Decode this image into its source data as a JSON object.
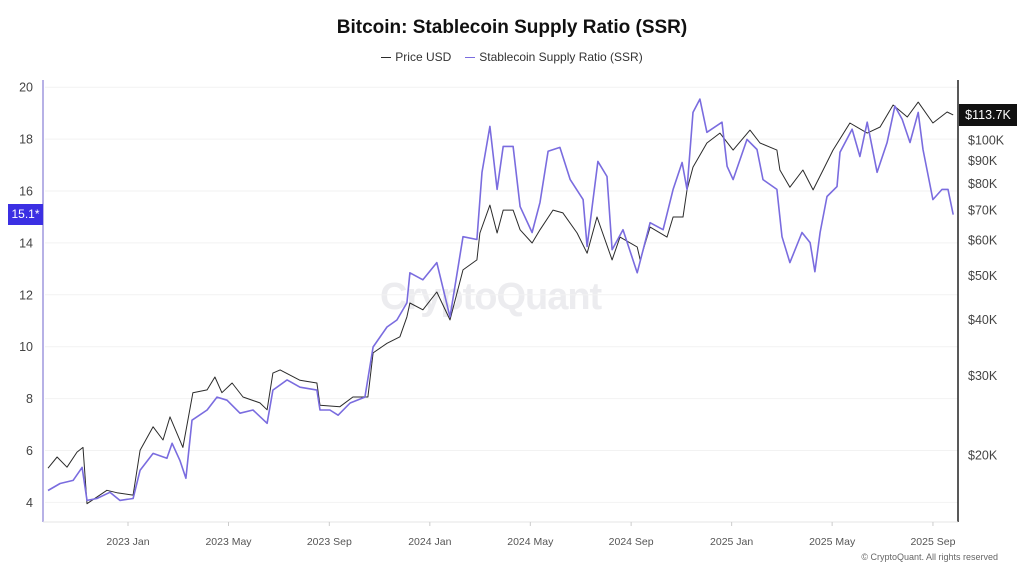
{
  "chart_data": {
    "type": "line",
    "title": "Bitcoin: Stablecoin Supply Ratio (SSR)",
    "legend": [
      "Price USD",
      "Stablecoin Supply Ratio (SSR)"
    ],
    "legend_placement": "top-center",
    "x_unit": "decimal year",
    "xlim": [
      2022.725,
      2025.75
    ],
    "x_ticks": [
      {
        "x": 2023.0,
        "label": "2023 Jan"
      },
      {
        "x": 2023.333,
        "label": "2023 May"
      },
      {
        "x": 2023.667,
        "label": "2023 Sep"
      },
      {
        "x": 2024.0,
        "label": "2024 Jan"
      },
      {
        "x": 2024.333,
        "label": "2024 May"
      },
      {
        "x": 2024.667,
        "label": "2024 Sep"
      },
      {
        "x": 2025.0,
        "label": "2025 Jan"
      },
      {
        "x": 2025.333,
        "label": "2025 May"
      },
      {
        "x": 2025.667,
        "label": "2025 Sep"
      }
    ],
    "left_axis": {
      "label": "SSR",
      "ylim": [
        3.4,
        20.2
      ],
      "ticks": [
        4,
        6,
        8,
        10,
        12,
        14,
        16,
        18,
        20
      ],
      "tick_labels": [
        "4",
        "6",
        "8",
        "10",
        "12",
        "14",
        "16",
        "18",
        "20"
      ],
      "grid": true,
      "current_value_label": "15.1*"
    },
    "right_axis": {
      "label": "Price USD",
      "scale": "log",
      "ylim": [
        14.5,
        134.5
      ],
      "unit": "thousand USD",
      "ticks": [
        20,
        30,
        40,
        50,
        60,
        70,
        80,
        90,
        100
      ],
      "tick_labels": [
        "$20K",
        "$30K",
        "$40K",
        "$50K",
        "$60K",
        "$70K",
        "$80K",
        "$90K",
        "$100K"
      ],
      "current_value_label": "$113.7K"
    },
    "series": [
      {
        "name": "Price USD",
        "axis": "right",
        "color": "#2b2b2b",
        "x": [
          2022.735,
          2022.765,
          2022.798,
          2022.831,
          2022.851,
          2022.864,
          2022.93,
          2022.963,
          2023.017,
          2023.04,
          2023.083,
          2023.116,
          2023.139,
          2023.182,
          2023.215,
          2023.262,
          2023.288,
          2023.311,
          2023.345,
          2023.381,
          2023.437,
          2023.461,
          2023.48,
          2023.504,
          2023.57,
          2023.626,
          2023.636,
          2023.702,
          2023.745,
          2023.795,
          2023.812,
          2023.858,
          2023.901,
          2023.924,
          2023.934,
          2023.977,
          2024.023,
          2024.067,
          2024.11,
          2024.156,
          2024.166,
          2024.199,
          2024.223,
          2024.243,
          2024.276,
          2024.299,
          2024.339,
          2024.365,
          2024.408,
          2024.441,
          2024.488,
          2024.521,
          2024.554,
          2024.604,
          2024.63,
          2024.687,
          2024.697,
          2024.73,
          2024.786,
          2024.806,
          2024.839,
          2024.852,
          2024.872,
          2024.918,
          2024.961,
          2025.005,
          2025.061,
          2025.094,
          2025.15,
          2025.16,
          2025.193,
          2025.236,
          2025.27,
          2025.303,
          2025.336,
          2025.392,
          2025.449,
          2025.492,
          2025.535,
          2025.582,
          2025.618,
          2025.667,
          2025.714,
          2025.734
        ],
        "y": [
          18.7,
          19.8,
          18.8,
          20.3,
          20.8,
          15.6,
          16.7,
          16.5,
          16.3,
          20.5,
          23.1,
          21.6,
          24.3,
          20.8,
          27.5,
          27.9,
          29.8,
          27.5,
          28.9,
          26.9,
          26.1,
          25.2,
          30.4,
          30.9,
          29.3,
          28.9,
          25.8,
          25.6,
          26.9,
          26.9,
          33.7,
          35.4,
          36.6,
          40.5,
          43.5,
          42.0,
          46.0,
          39.9,
          51.5,
          54.2,
          62.2,
          71.7,
          62.2,
          69.9,
          69.9,
          63.2,
          59.1,
          63.2,
          69.9,
          68.9,
          62.2,
          56.1,
          67.5,
          54.2,
          60.9,
          57.9,
          54.2,
          64.1,
          60.9,
          67.5,
          67.5,
          77.5,
          87.1,
          98.5,
          103.6,
          95.0,
          105.2,
          98.5,
          95.0,
          85.8,
          78.6,
          85.8,
          77.5,
          85.8,
          95.0,
          109.1,
          103.6,
          106.9,
          119.6,
          112.5,
          121.4,
          109.1,
          115.4,
          113.7
        ]
      },
      {
        "name": "Stablecoin Supply Ratio (SSR)",
        "axis": "left",
        "color": "#7a6cdf",
        "x": [
          2022.735,
          2022.775,
          2022.818,
          2022.848,
          2022.864,
          2022.897,
          2022.94,
          2022.973,
          2023.017,
          2023.04,
          2023.083,
          2023.129,
          2023.146,
          2023.172,
          2023.192,
          2023.212,
          2023.262,
          2023.295,
          2023.328,
          2023.371,
          2023.414,
          2023.461,
          2023.48,
          2023.527,
          2023.57,
          2023.626,
          2023.636,
          2023.669,
          2023.696,
          2023.736,
          2023.785,
          2023.812,
          2023.858,
          2023.891,
          2023.924,
          2023.934,
          2023.977,
          2024.023,
          2024.067,
          2024.11,
          2024.156,
          2024.173,
          2024.199,
          2024.223,
          2024.243,
          2024.276,
          2024.299,
          2024.339,
          2024.365,
          2024.392,
          2024.431,
          2024.465,
          2024.508,
          2024.521,
          2024.557,
          2024.587,
          2024.604,
          2024.64,
          2024.687,
          2024.73,
          2024.773,
          2024.806,
          2024.836,
          2024.852,
          2024.872,
          2024.895,
          2024.918,
          2024.968,
          2024.985,
          2025.005,
          2025.051,
          2025.084,
          2025.104,
          2025.15,
          2025.167,
          2025.193,
          2025.233,
          2025.26,
          2025.276,
          2025.293,
          2025.316,
          2025.349,
          2025.359,
          2025.399,
          2025.425,
          2025.449,
          2025.482,
          2025.515,
          2025.541,
          2025.565,
          2025.591,
          2025.618,
          2025.634,
          2025.667,
          2025.697,
          2025.717,
          2025.734
        ],
        "y": [
          4.46,
          4.73,
          4.85,
          5.35,
          4.08,
          4.15,
          4.39,
          4.08,
          4.15,
          5.24,
          5.89,
          5.7,
          6.28,
          5.62,
          4.93,
          7.17,
          7.56,
          8.06,
          7.94,
          7.44,
          7.56,
          7.05,
          8.33,
          8.72,
          8.44,
          8.33,
          7.56,
          7.56,
          7.36,
          7.83,
          8.06,
          9.99,
          10.76,
          11.03,
          11.69,
          12.85,
          12.58,
          13.24,
          11.15,
          14.24,
          14.13,
          16.72,
          18.49,
          16.06,
          17.72,
          17.72,
          15.4,
          14.4,
          15.56,
          17.53,
          17.68,
          16.44,
          15.67,
          13.86,
          17.14,
          16.56,
          13.74,
          14.51,
          12.85,
          14.78,
          14.51,
          16.06,
          17.1,
          16.06,
          19.03,
          19.54,
          18.26,
          18.65,
          16.95,
          16.44,
          17.99,
          17.6,
          16.44,
          16.06,
          14.24,
          13.24,
          14.4,
          14.01,
          12.89,
          14.4,
          15.79,
          16.17,
          17.49,
          18.38,
          17.33,
          18.65,
          16.72,
          17.87,
          19.27,
          18.76,
          17.87,
          19.03,
          17.6,
          15.67,
          16.06,
          16.06,
          15.09
        ]
      }
    ],
    "watermark": "CryptoQuant",
    "copyright": "© CryptoQuant. All rights reserved"
  }
}
